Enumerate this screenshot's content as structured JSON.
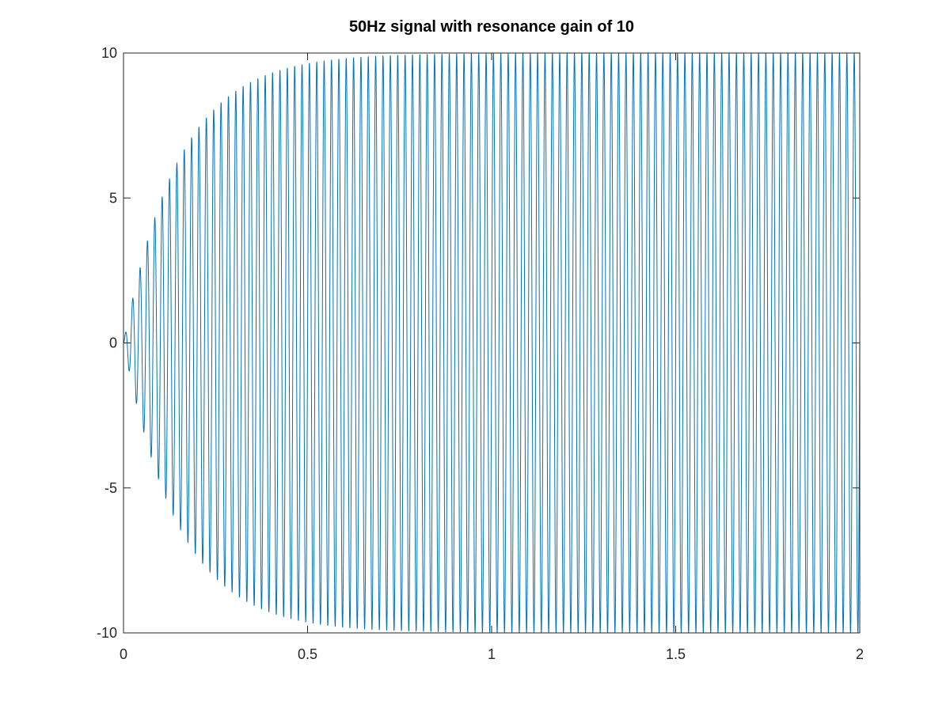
{
  "chart_data": {
    "type": "line",
    "title": "50Hz signal with resonance gain of 10",
    "xlabel": "",
    "ylabel": "",
    "xlim": [
      0,
      2
    ],
    "ylim": [
      -10,
      10
    ],
    "xticks": [
      0,
      0.5,
      1,
      1.5,
      2
    ],
    "xtick_labels": [
      "0",
      "0.5",
      "1",
      "1.5",
      "2"
    ],
    "yticks": [
      -10,
      -5,
      0,
      5,
      10
    ],
    "ytick_labels": [
      "-10",
      "-5",
      "0",
      "5",
      "10"
    ],
    "grid": false,
    "series": [
      {
        "name": "signal",
        "frequency_hz": 50,
        "steady_state_amplitude": 10,
        "envelope_time_constant_s": 0.15,
        "color": "#0072bd"
      }
    ]
  }
}
